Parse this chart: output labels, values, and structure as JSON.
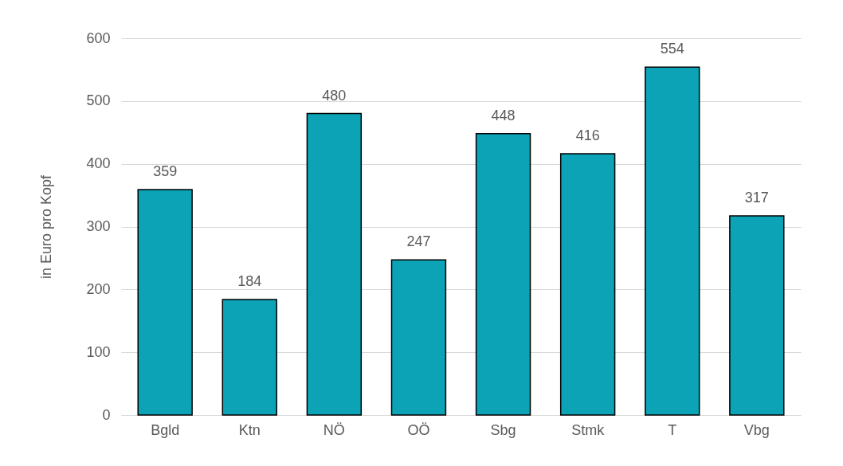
{
  "chart_data": {
    "type": "bar",
    "ylabel": "in Euro pro Kopf",
    "categories": [
      "Bgld",
      "Ktn",
      "NÖ",
      "OÖ",
      "Sbg",
      "Stmk",
      "T",
      "Vbg"
    ],
    "values": [
      359,
      184,
      480,
      247,
      448,
      416,
      554,
      317
    ],
    "color": "#0ba3b5",
    "ylim": [
      0,
      600
    ],
    "yticks": [
      0,
      100,
      200,
      300,
      400,
      500,
      600
    ],
    "grid": "y",
    "data_labels": true
  }
}
